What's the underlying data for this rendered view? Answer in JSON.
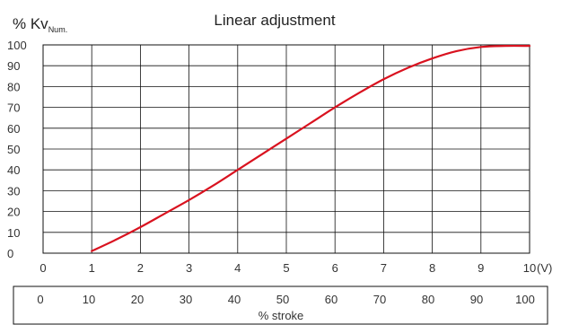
{
  "chart_data": {
    "type": "line",
    "title": "Linear adjustment",
    "ylabel": "% Kv",
    "ylabel_subscript": "Num.",
    "x_unit_label": "(V)",
    "x": [
      1,
      1.5,
      2,
      2.5,
      3,
      3.5,
      4,
      4.5,
      5,
      5.5,
      6,
      6.5,
      7,
      7.5,
      8,
      8.5,
      9,
      9.5,
      10
    ],
    "xlim": [
      0,
      10
    ],
    "ylim": [
      0,
      100
    ],
    "x_ticks": [
      "0",
      "1",
      "2",
      "3",
      "4",
      "5",
      "6",
      "7",
      "8",
      "9",
      "10"
    ],
    "y_ticks": [
      "0",
      "10",
      "20",
      "30",
      "40",
      "50",
      "60",
      "70",
      "80",
      "90",
      "100"
    ],
    "grid": true,
    "line_color": "#d9121f",
    "series": [
      {
        "values": [
          1,
          6.5,
          12.5,
          19,
          25.5,
          32.5,
          40,
          47.5,
          55,
          62.5,
          70,
          77,
          83.5,
          89,
          93.5,
          97,
          99,
          99.5,
          99.5
        ]
      }
    ],
    "secondary_axis": {
      "label": "% stroke",
      "ticks": [
        "0",
        "10",
        "20",
        "30",
        "40",
        "50",
        "60",
        "70",
        "80",
        "90",
        "100"
      ]
    }
  }
}
